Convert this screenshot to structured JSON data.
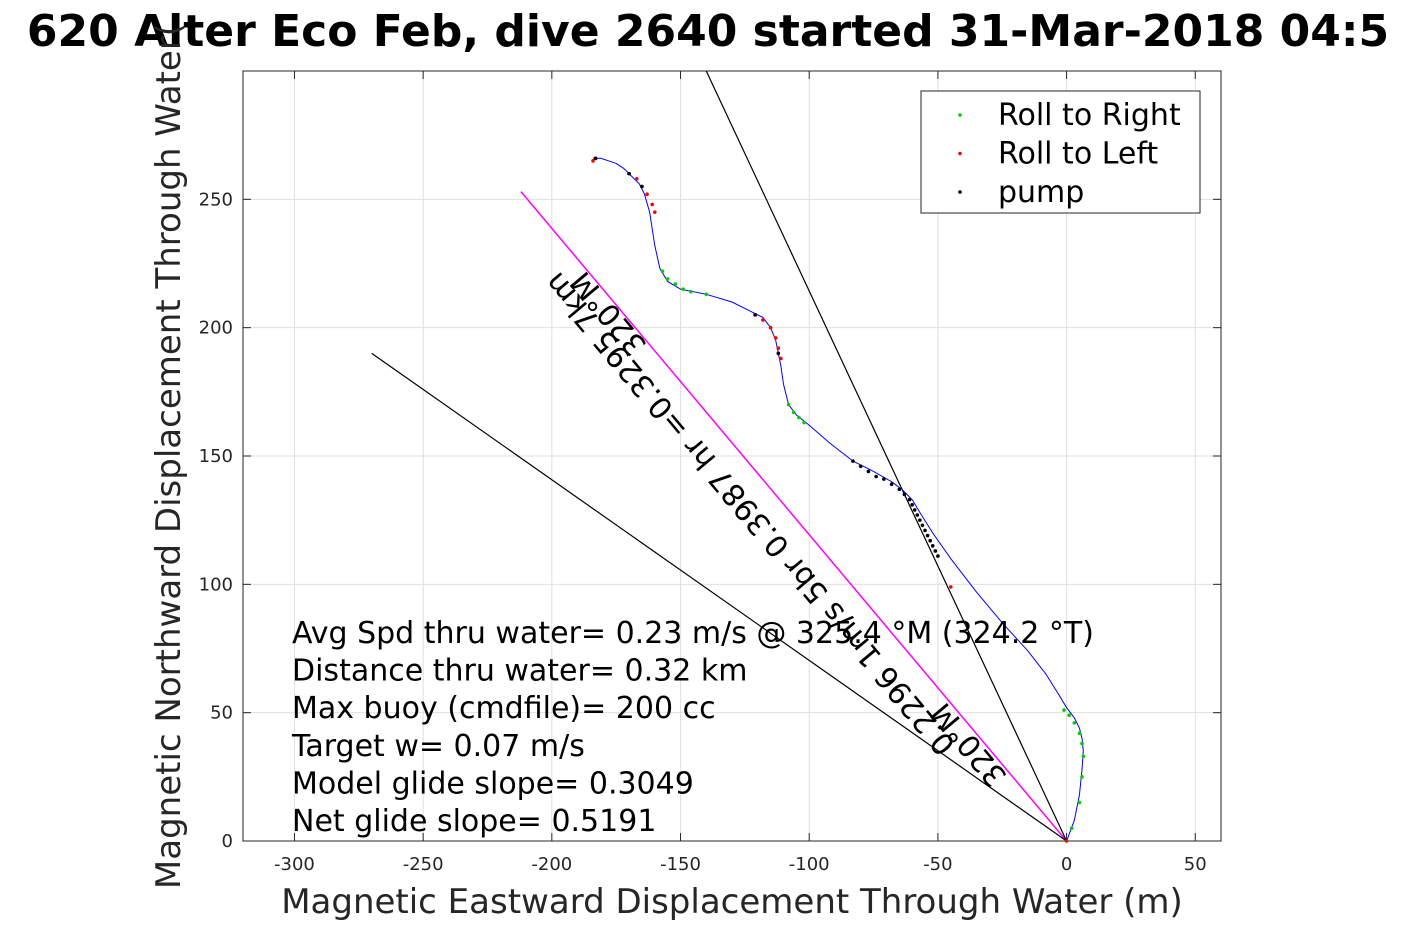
{
  "chart_data": {
    "type": "line",
    "title": "620 Alter Eco Feb, dive 2640 started 31-Mar-2018 04:5",
    "xlabel": "Magnetic Eastward Displacement Through Water (m)",
    "ylabel": "Magnetic Northward Displacement Through Water(",
    "xlim": [
      -320,
      60
    ],
    "ylim": [
      0,
      300
    ],
    "xticks": [
      -300,
      -250,
      -200,
      -150,
      -100,
      -50,
      0,
      50
    ],
    "yticks": [
      0,
      50,
      100,
      150,
      200,
      250
    ],
    "grid": true,
    "legend": {
      "placement": "top-right",
      "entries": [
        {
          "label": "Roll to Right",
          "color": "#00cc00"
        },
        {
          "label": "Roll to Left",
          "color": "#ff0000"
        },
        {
          "label": "pump",
          "color": "#000000"
        }
      ]
    },
    "track": {
      "color": "#0000ff",
      "x": [
        0,
        3,
        5,
        6,
        6.5,
        6,
        5,
        3,
        0,
        -3,
        -8,
        -15,
        -25,
        -35,
        -45,
        -52,
        -57,
        -60,
        -62,
        -64,
        -68,
        -75,
        -83,
        -92,
        -100,
        -105,
        -108,
        -110,
        -111,
        -112,
        -113,
        -115,
        -118,
        -122,
        -130,
        -140,
        -150,
        -155,
        -158,
        -160,
        -162,
        -164,
        -166,
        -169,
        -172,
        -175,
        -178,
        -181,
        -184
      ],
      "y": [
        0,
        8,
        18,
        28,
        35,
        40,
        44,
        48,
        52,
        57,
        65,
        74,
        85,
        97,
        110,
        120,
        128,
        133,
        135,
        137,
        140,
        144,
        148,
        155,
        162,
        166,
        170,
        178,
        185,
        190,
        195,
        200,
        204,
        206,
        210,
        213,
        215,
        218,
        223,
        232,
        245,
        252,
        256,
        259,
        262,
        264,
        265,
        266,
        266
      ]
    },
    "markers": {
      "roll_right": {
        "color": "#00cc00",
        "x": [
          2,
          5,
          6,
          6.5,
          6,
          5,
          3,
          1,
          -1,
          -108,
          -106,
          -104,
          -102,
          -157,
          -155,
          -152,
          -149,
          -146,
          -140
        ],
        "y": [
          5,
          15,
          25,
          33,
          38,
          42,
          46,
          49,
          51,
          170,
          167,
          165,
          163,
          222,
          219,
          217,
          215,
          214,
          213
        ]
      },
      "roll_left": {
        "color": "#ff0000",
        "x": [
          0,
          -45,
          -111,
          -112,
          -113,
          -115,
          -118,
          -121,
          -160,
          -161,
          -163,
          -165,
          -167,
          -170,
          -183,
          -184
        ],
        "y": [
          0,
          99,
          188,
          192,
          196,
          200,
          203,
          205,
          245,
          248,
          252,
          255,
          258,
          260,
          266,
          265
        ]
      },
      "pump": {
        "color": "#000000",
        "x": [
          -83,
          -80,
          -77,
          -74,
          -71,
          -68,
          -65,
          -63,
          -61,
          -60,
          -59,
          -58,
          -57,
          -56,
          -55,
          -54,
          -53,
          -52,
          -51,
          -50,
          -183,
          -170,
          -165,
          -112,
          -121
        ],
        "y": [
          148,
          146,
          144,
          142,
          141,
          139,
          137,
          135,
          133,
          131,
          129,
          127,
          125,
          123,
          121,
          119,
          117,
          115,
          113,
          111,
          266,
          260,
          255,
          190,
          205
        ]
      }
    },
    "reference_lines": [
      {
        "name": "heading-320",
        "color": "#ff00ff",
        "x": [
          0,
          -212
        ],
        "y": [
          0,
          253
        ]
      },
      {
        "name": "current-line-1",
        "color": "#000000",
        "x": [
          0,
          -140
        ],
        "y": [
          0,
          300
        ]
      },
      {
        "name": "current-line-2",
        "color": "#000000",
        "x": [
          0,
          -270
        ],
        "y": [
          0,
          190
        ]
      }
    ],
    "line_annotations": [
      {
        "text": "320°M",
        "x": -175,
        "y": 208,
        "rotation": 230
      },
      {
        "text": "0.2296 1m/s 5br 0.3987 hr =0.3295 7km",
        "x": -120,
        "y": 130,
        "rotation": 230
      },
      {
        "text": "320°M",
        "x": -35,
        "y": 40,
        "rotation": 230
      }
    ],
    "annotations": [
      "Avg Spd thru water=  0.23 m/s @ 325.4 °M (324.2 °T)",
      "Distance thru water=  0.32 km",
      "Max buoy (cmdfile)= 200 cc",
      "Target w= 0.07 m/s",
      "Model glide slope= 0.3049",
      "Net glide slope= 0.5191"
    ]
  }
}
